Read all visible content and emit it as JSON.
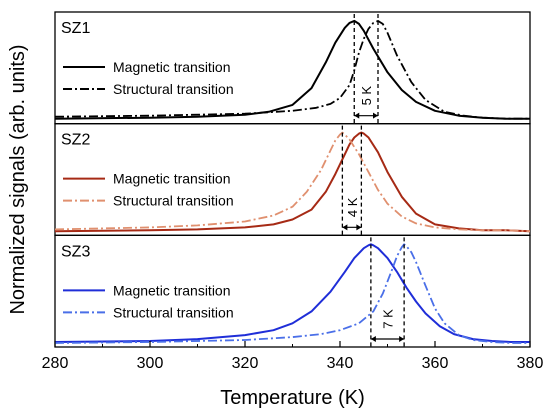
{
  "chart_data": {
    "type": "line",
    "xlabel": "Temperature (K)",
    "ylabel": "Normalized signals (arb. units)",
    "xlim": [
      280,
      380
    ],
    "x_ticks": [
      280,
      300,
      320,
      340,
      360,
      380
    ],
    "grid": false,
    "legend_placement": "left",
    "panels": [
      {
        "label": "SZ1",
        "color_magnetic": "#000000",
        "color_structural": "#000000",
        "gap_label": "5 K",
        "magnetic_peak": 343,
        "structural_peak": 348,
        "series": [
          {
            "name": "Magnetic transition",
            "style": "solid",
            "x": [
              280,
              300,
              310,
              320,
              325,
              330,
              334,
              337,
              339,
              341,
              342,
              343,
              344,
              345,
              347,
              350,
              353,
              356,
              360,
              365,
              370,
              375,
              380
            ],
            "y": [
              0.01,
              0.02,
              0.03,
              0.05,
              0.08,
              0.15,
              0.32,
              0.58,
              0.78,
              0.93,
              0.98,
              1.0,
              0.97,
              0.9,
              0.72,
              0.48,
              0.3,
              0.18,
              0.09,
              0.04,
              0.02,
              0.01,
              0.01
            ]
          },
          {
            "name": "Structural transition",
            "style": "dashdot",
            "x": [
              280,
              300,
              320,
              330,
              335,
              338,
              340,
              342,
              343,
              344,
              345,
              346,
              347,
              348,
              349,
              350,
              352,
              355,
              358,
              362,
              366,
              370,
              375,
              380
            ],
            "y": [
              0.03,
              0.04,
              0.06,
              0.09,
              0.12,
              0.16,
              0.22,
              0.35,
              0.5,
              0.68,
              0.82,
              0.92,
              0.98,
              1.0,
              0.97,
              0.88,
              0.65,
              0.38,
              0.2,
              0.08,
              0.04,
              0.02,
              0.01,
              0.01
            ]
          }
        ]
      },
      {
        "label": "SZ2",
        "color_magnetic": "#a62a15",
        "color_structural": "#e0906f",
        "gap_label": "4 K",
        "magnetic_peak": 344.5,
        "structural_peak": 340.5,
        "series": [
          {
            "name": "Magnetic transition",
            "style": "solid",
            "x": [
              280,
              300,
              310,
              320,
              326,
              330,
              334,
              337,
              339,
              341,
              342,
              343,
              344,
              344.5,
              345,
              346,
              348,
              350,
              353,
              356,
              360,
              365,
              370,
              375,
              380
            ],
            "y": [
              0.0,
              0.01,
              0.02,
              0.04,
              0.07,
              0.12,
              0.22,
              0.4,
              0.58,
              0.78,
              0.88,
              0.95,
              0.99,
              1.0,
              0.99,
              0.95,
              0.8,
              0.6,
              0.35,
              0.18,
              0.07,
              0.03,
              0.01,
              0.01,
              0.0
            ]
          },
          {
            "name": "Structural transition",
            "style": "dashdot",
            "x": [
              280,
              300,
              310,
              320,
              326,
              330,
              333,
              336,
              338,
              339,
              340,
              340.5,
              341,
              342,
              344,
              346,
              348,
              350,
              353,
              356,
              360,
              365,
              370,
              375,
              380
            ],
            "y": [
              0.02,
              0.04,
              0.06,
              0.1,
              0.16,
              0.25,
              0.4,
              0.62,
              0.82,
              0.92,
              0.98,
              1.0,
              0.98,
              0.93,
              0.78,
              0.6,
              0.42,
              0.28,
              0.15,
              0.08,
              0.04,
              0.02,
              0.01,
              0.01,
              0.0
            ]
          }
        ]
      },
      {
        "label": "SZ3",
        "color_magnetic": "#1f2ed8",
        "color_structural": "#4a6fe8",
        "gap_label": "7 K",
        "magnetic_peak": 346.5,
        "structural_peak": 353.5,
        "series": [
          {
            "name": "Magnetic transition",
            "style": "solid",
            "x": [
              280,
              300,
              310,
              320,
              326,
              330,
              334,
              338,
              341,
              343,
              345,
              346,
              346.5,
              347,
              348,
              350,
              352,
              354,
              356,
              358,
              361,
              364,
              368,
              372,
              376,
              380
            ],
            "y": [
              0.01,
              0.02,
              0.04,
              0.08,
              0.13,
              0.2,
              0.32,
              0.52,
              0.72,
              0.86,
              0.96,
              0.99,
              1.0,
              0.99,
              0.96,
              0.86,
              0.72,
              0.56,
              0.42,
              0.3,
              0.17,
              0.09,
              0.04,
              0.02,
              0.01,
              0.01
            ]
          },
          {
            "name": "Structural transition",
            "style": "dashdot",
            "x": [
              280,
              300,
              320,
              330,
              336,
              340,
              344,
              347,
              349,
              351,
              352,
              353,
              353.5,
              354,
              355,
              356,
              358,
              360,
              362,
              365,
              368,
              372,
              376,
              380
            ],
            "y": [
              0.0,
              0.01,
              0.03,
              0.06,
              0.09,
              0.13,
              0.2,
              0.32,
              0.5,
              0.75,
              0.88,
              0.97,
              1.0,
              0.98,
              0.92,
              0.82,
              0.58,
              0.35,
              0.2,
              0.08,
              0.03,
              0.01,
              0.0,
              0.0
            ]
          }
        ]
      }
    ]
  }
}
